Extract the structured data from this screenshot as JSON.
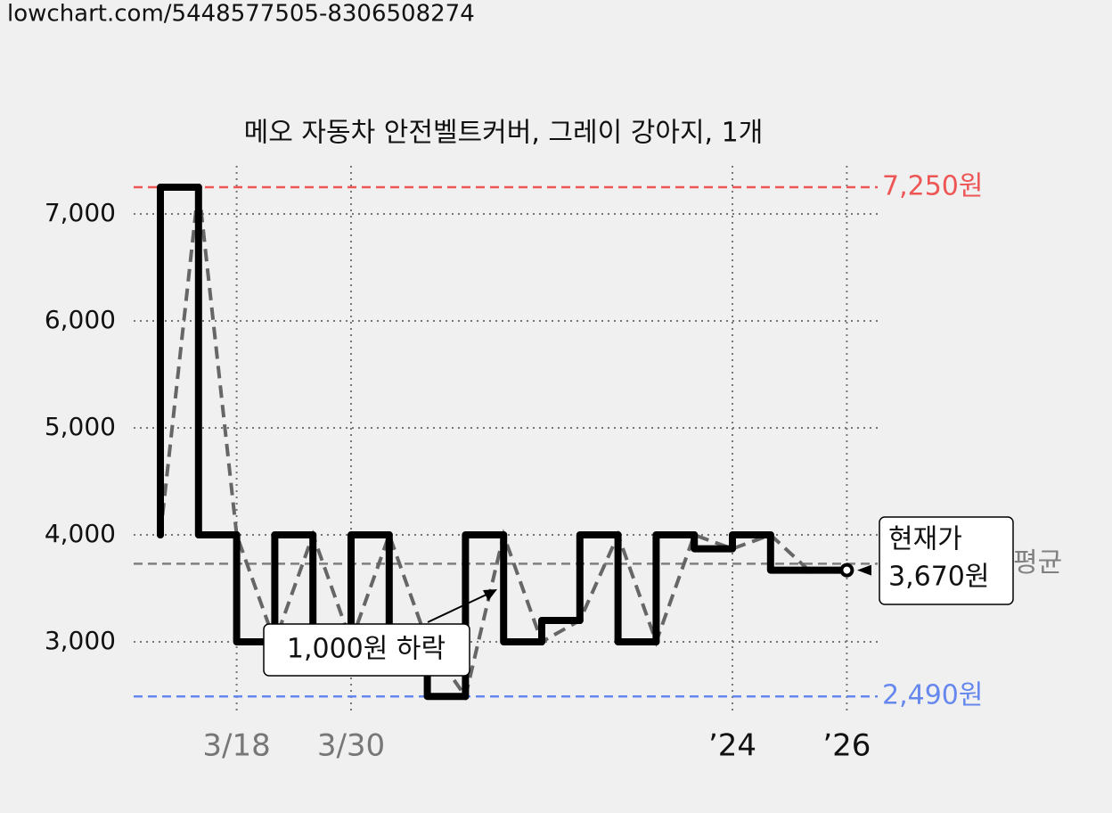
{
  "url": "lowchart.com/5448577505-8306508274",
  "chart_data": {
    "type": "line",
    "title": "메오 자동차 안전벨트커버, 그레이 강아지, 1개",
    "categories": [
      null,
      null,
      "3/18",
      null,
      null,
      "3/30",
      null,
      null,
      null,
      null,
      null,
      null,
      null,
      null,
      null,
      "’24",
      null,
      null,
      "’26"
    ],
    "series": [
      {
        "color": "#000000",
        "values": [
          4000,
          7250,
          4000,
          3000,
          4000,
          3000,
          4000,
          3000,
          2490,
          4000,
          3000,
          3200,
          4000,
          3000,
          4000,
          3870,
          4000,
          3670,
          3670
        ]
      }
    ],
    "ylim": [
      2350,
      7450
    ],
    "yticks": [
      {
        "value": 3000,
        "label": "3,000"
      },
      {
        "value": 4000,
        "label": "4,000"
      },
      {
        "value": 5000,
        "label": "5,000"
      },
      {
        "value": 6000,
        "label": "6,000"
      },
      {
        "value": 7000,
        "label": "7,000"
      }
    ],
    "grid": true,
    "max_line": {
      "value": 7250,
      "label": "7,250원",
      "color": "#ee5555"
    },
    "min_line": {
      "value": 2490,
      "label": "2,490원",
      "color": "#6688ee"
    },
    "avg_line": {
      "value": 3730,
      "label": "평균",
      "color": "#808080"
    },
    "current": {
      "title": "현재가",
      "value": 3670,
      "label": "3,670원"
    },
    "annotation": "1,000원 하락"
  }
}
